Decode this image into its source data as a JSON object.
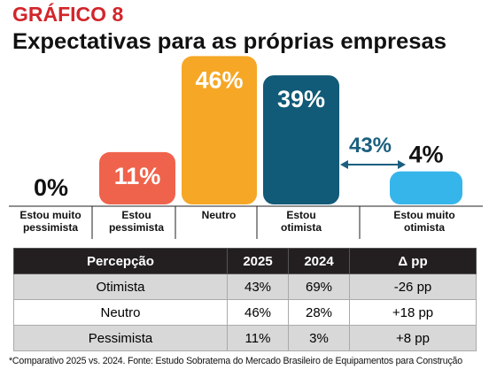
{
  "chart_data": {
    "type": "bar",
    "title": "GRÁFICO 8",
    "subtitle": "Expectativas para as próprias empresas",
    "categories": [
      "Estou muito pessimista",
      "Estou pessimista",
      "Neutro",
      "Estou otimista",
      "Estou muito otimista"
    ],
    "values": [
      0,
      11,
      46,
      39,
      4
    ],
    "value_labels": [
      "0%",
      "11%",
      "46%",
      "39%",
      "4%"
    ],
    "colors": [
      "#f3f3f3",
      "#ef634c",
      "#f6a726",
      "#115a78",
      "#36b5ea"
    ],
    "annotation": "43%",
    "annotation_color": "#1b5f80"
  },
  "table": {
    "columns": [
      "Percepção",
      "2025",
      "2024",
      "Δ pp"
    ],
    "rows": [
      [
        "Otimista",
        "43%",
        "69%",
        "-26 pp"
      ],
      [
        "Neutro",
        "46%",
        "28%",
        "+18 pp"
      ],
      [
        "Pessimista",
        "11%",
        "3%",
        "+8 pp"
      ]
    ]
  },
  "footnote": "*Comparativo 2025 vs. 2024. Fonte: Estudo Sobratema do Mercado Brasileiro de Equipamentos para Construção"
}
